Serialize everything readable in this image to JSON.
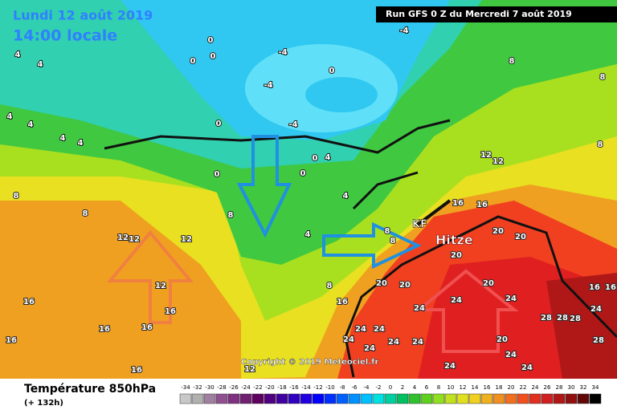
{
  "header": {
    "date": "Lundi 12 août 2019",
    "time": "14:00 locale",
    "run": "Run GFS 0 Z du Mercredi 7 août 2019"
  },
  "annotations": {
    "heat": "Hitze",
    "front": "KF",
    "copyright": "Copyright © 2019 Meteociel.fr"
  },
  "legend": {
    "title": "Température 850hPa",
    "lead": "(+ 132h)",
    "ticks": [
      -34,
      -32,
      -30,
      -28,
      -26,
      -24,
      -22,
      -20,
      -18,
      -16,
      -14,
      -12,
      -10,
      -8,
      -6,
      -4,
      -2,
      0,
      2,
      4,
      6,
      8,
      10,
      12,
      14,
      16,
      18,
      20,
      22,
      24,
      26,
      28,
      30,
      32,
      34
    ]
  },
  "map_labels": [
    0,
    -4,
    0,
    0,
    -4,
    0,
    -4,
    0,
    -4,
    8,
    8,
    8,
    4,
    4,
    4,
    4,
    4,
    4,
    0,
    0,
    0,
    4,
    4,
    4,
    8,
    8,
    8,
    8,
    8,
    8,
    12,
    12,
    12,
    12,
    12,
    12,
    16,
    16,
    16,
    16,
    16,
    16,
    16,
    16,
    16,
    20,
    20,
    20,
    20,
    20,
    24,
    24,
    24,
    24,
    24,
    24,
    24,
    24,
    24,
    24,
    24,
    20,
    20,
    24,
    16,
    16,
    28,
    28,
    28,
    24,
    28,
    12
  ]
}
